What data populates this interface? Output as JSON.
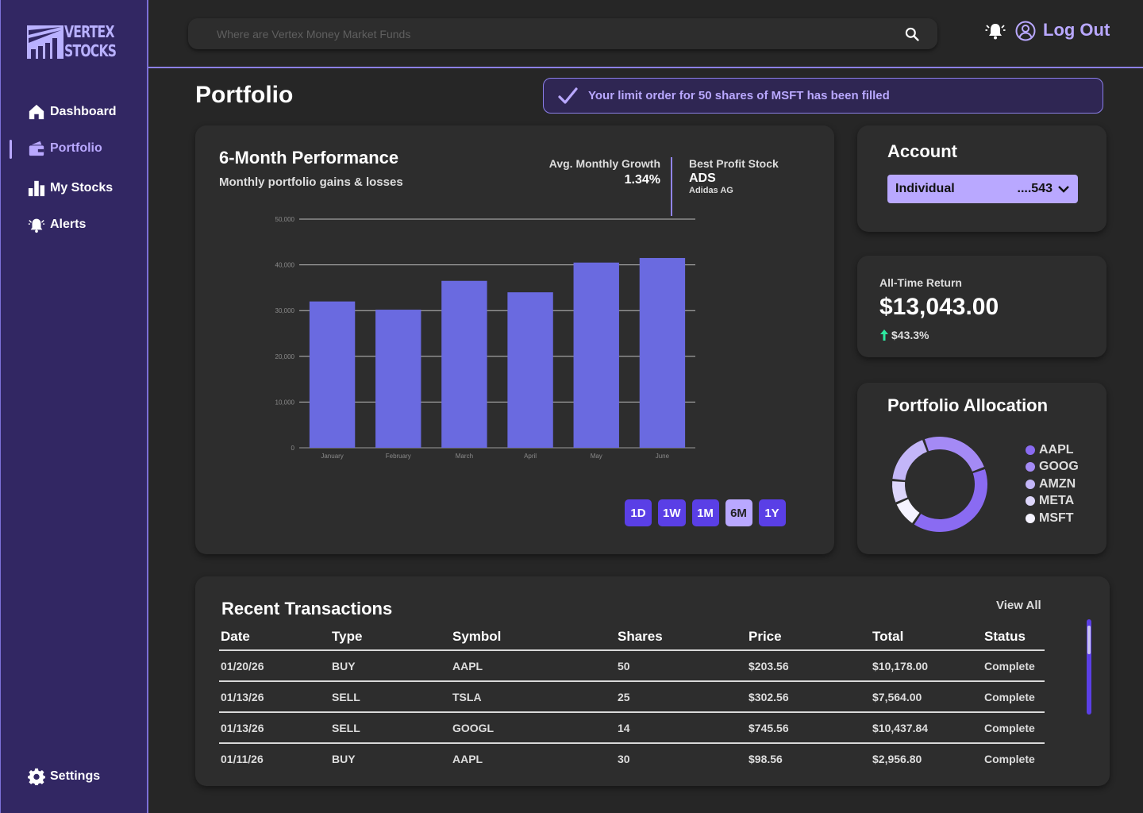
{
  "brand": {
    "line1": "VERTEX",
    "line2": "STOCKS"
  },
  "sidebar": {
    "items": [
      {
        "label": "Dashboard",
        "icon": "home-icon"
      },
      {
        "label": "Portfolio",
        "icon": "wallet-icon",
        "active": true
      },
      {
        "label": "My Stocks",
        "icon": "bar-chart-icon"
      },
      {
        "label": "Alerts",
        "icon": "bell-icon"
      }
    ],
    "settings": {
      "label": "Settings",
      "icon": "gear-icon"
    }
  },
  "search": {
    "placeholder": "Where are Vertex Money Market Funds"
  },
  "header": {
    "logout": "Log Out"
  },
  "page": {
    "title": "Portfolio"
  },
  "toast": {
    "message": "Your limit order for 50 shares of MSFT has been filled"
  },
  "performance": {
    "title": "6-Month Performance",
    "subtitle": "Monthly portfolio gains & losses",
    "avg_label": "Avg. Monthly Growth",
    "avg_value": "1.34%",
    "best_label": "Best Profit Stock",
    "best_symbol": "ADS",
    "best_name": "Adidas AG",
    "ranges": [
      "1D",
      "1W",
      "1M",
      "6M",
      "1Y"
    ],
    "active_range": "6M"
  },
  "chart_data": {
    "type": "bar",
    "categories": [
      "January",
      "February",
      "March",
      "April",
      "May",
      "June"
    ],
    "values": [
      32000,
      30200,
      36500,
      34000,
      40500,
      41500
    ],
    "ylim": [
      0,
      50000
    ],
    "yticks": [
      "0",
      "10,000",
      "20,000",
      "30,000",
      "40,000",
      "50,000"
    ],
    "grid": true,
    "color": "#6a6ae0"
  },
  "account": {
    "title": "Account",
    "type": "Individual",
    "number": "....543"
  },
  "returns": {
    "label": "All-Time Return",
    "value": "$13,043.00",
    "change": "$43.3%",
    "up_color": "#2ee8a0"
  },
  "allocation": {
    "title": "Portfolio Allocation",
    "items": [
      {
        "symbol": "AAPL",
        "color": "#8a6bf2",
        "share": 0.4
      },
      {
        "symbol": "GOOG",
        "color": "#a48af5",
        "share": 0.25
      },
      {
        "symbol": "AMZN",
        "color": "#c3b6f8",
        "share": 0.18
      },
      {
        "symbol": "META",
        "color": "#ddd6fb",
        "share": 0.08
      },
      {
        "symbol": "MSFT",
        "color": "#f5f3ff",
        "share": 0.09
      }
    ]
  },
  "transactions": {
    "title": "Recent Transactions",
    "view_all": "View All",
    "columns": [
      "Date",
      "Type",
      "Symbol",
      "Shares",
      "Price",
      "Total",
      "Status"
    ],
    "rows": [
      [
        "01/20/26",
        "BUY",
        "AAPL",
        "50",
        "$203.56",
        "$10,178.00",
        "Complete"
      ],
      [
        "01/13/26",
        "SELL",
        "TSLA",
        "25",
        "$302.56",
        "$7,564.00",
        "Complete"
      ],
      [
        "01/13/26",
        "SELL",
        "GOOGL",
        "14",
        "$745.56",
        "$10,437.84",
        "Complete"
      ],
      [
        "01/11/26",
        "BUY",
        "AAPL",
        "30",
        "$98.56",
        "$2,956.80",
        "Complete"
      ]
    ]
  }
}
